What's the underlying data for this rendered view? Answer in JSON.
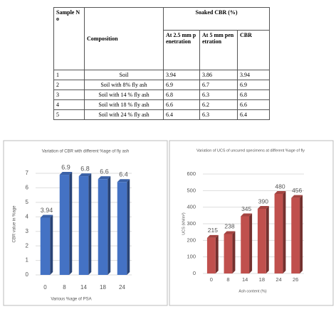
{
  "table": {
    "header": {
      "sample_no": "Sample No",
      "composition": "Composition",
      "group": "Soaked CBR (%)",
      "sub": [
        "At 2.5 mm penetration",
        "At 5 mm penetration",
        "CBR"
      ]
    },
    "rows": [
      [
        "1",
        "Soil",
        "3.94",
        "3.86",
        "3.94"
      ],
      [
        "2",
        "Soil with 8% fly ash",
        "6.9",
        "6.7",
        "6.9"
      ],
      [
        "3",
        "Soil with 14 % fly ash",
        "6.8",
        "6.3",
        "6.8"
      ],
      [
        "4",
        "Soil with 18 % fly ash",
        "6.6",
        "6.2",
        "6.6"
      ],
      [
        "5",
        "Soil with 24 % fly ash",
        "6.4",
        "6.3",
        "6.4"
      ]
    ]
  },
  "chart_data": [
    {
      "type": "bar",
      "title": "Variation of CBR with different %age of fly ash",
      "x_label": "Various %age of PSA",
      "y_label": "CBR value in %age",
      "categories": [
        "0",
        "8",
        "14",
        "18",
        "24"
      ],
      "values": [
        3.94,
        6.9,
        6.8,
        6.6,
        6.4
      ],
      "color": "#4472c4",
      "ylim": [
        0,
        7
      ],
      "yticks": [
        0,
        1,
        2,
        3,
        4,
        5,
        6,
        7
      ],
      "grid": true
    },
    {
      "type": "bar",
      "title": "Variation of UCS of uncured specimens at different %age of fly",
      "x_label": "Ash content (%)",
      "y_label": "UCS (kN/m²)",
      "categories": [
        "0",
        "8",
        "14",
        "18",
        "24",
        "26"
      ],
      "values": [
        215,
        238,
        345,
        390,
        480,
        456
      ],
      "color": "#c0504d",
      "ylim": [
        0,
        600
      ],
      "yticks": [
        0,
        100,
        200,
        300,
        400,
        500,
        600
      ],
      "grid": true
    }
  ]
}
